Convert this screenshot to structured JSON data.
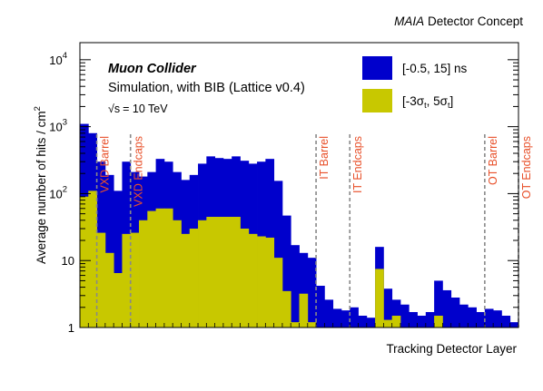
{
  "header": {
    "concept_italic": "MAIA",
    "concept_rest": " Detector Concept"
  },
  "chart_data": {
    "type": "bar",
    "subtype": "stacked-step-histogram",
    "title": "",
    "xlabel": "Tracking Detector Layer",
    "ylabel": "Average number of hits / cm",
    "ylabel_sup": "2",
    "yscale": "log",
    "ylim": [
      1,
      18000
    ],
    "y_ticks": [
      {
        "value": 1,
        "label": "1"
      },
      {
        "value": 10,
        "label": "10"
      },
      {
        "value": 100,
        "label": "10",
        "sup": "2"
      },
      {
        "value": 1000,
        "label": "10",
        "sup": "3"
      },
      {
        "value": 10000,
        "label": "10",
        "sup": "4"
      }
    ],
    "n_layers": 52,
    "series": [
      {
        "name": "[-0.5, 15] ns",
        "color": "#0000cc",
        "values": [
          1100,
          800,
          300,
          190,
          110,
          300,
          210,
          180,
          210,
          330,
          300,
          210,
          160,
          190,
          280,
          360,
          340,
          330,
          360,
          310,
          280,
          300,
          330,
          155,
          47,
          17,
          13,
          11,
          4.2,
          2.6,
          1.9,
          1.8,
          2.0,
          1.5,
          1.4,
          16,
          3.8,
          2.6,
          2.2,
          1.7,
          1.5,
          1.7,
          5.0,
          3.6,
          2.8,
          2.2,
          2.0,
          1.7,
          1.9,
          1.8,
          1.5,
          1.2
        ]
      },
      {
        "name": "[-3σ_t, 5σ_t]",
        "color": "#c8c800",
        "values": [
          90,
          110,
          26,
          13,
          6.5,
          25,
          26,
          40,
          55,
          60,
          60,
          40,
          25,
          30,
          40,
          45,
          45,
          45,
          45,
          30,
          25,
          23,
          22,
          11,
          3.5,
          1.2,
          3.2,
          1.2,
          1,
          1,
          1,
          1,
          1,
          1,
          1,
          7.5,
          1.3,
          1.5,
          1,
          1,
          1,
          1,
          1.5,
          1,
          1,
          1,
          1,
          1,
          1,
          1,
          1,
          1
        ]
      }
    ],
    "dashed_lines": [
      {
        "after_layer": 1
      },
      {
        "after_layer": 5
      },
      {
        "after_layer": 27
      },
      {
        "after_layer": 31
      },
      {
        "after_layer": 47
      },
      {
        "after_layer": 51
      }
    ],
    "annotations": [
      {
        "text": "VXD Barrel",
        "after_layer": 1
      },
      {
        "text": "VXD Endcaps",
        "after_layer": 5
      },
      {
        "text": "IT Barrel",
        "after_layer": 27
      },
      {
        "text": "IT Endcaps",
        "after_layer": 31
      },
      {
        "text": "OT Barrel",
        "after_layer": 47
      },
      {
        "text": "OT Endcaps",
        "after_layer": 51
      }
    ],
    "annotation_color": "#e8502a",
    "info": {
      "line1": "Muon Collider",
      "line2": "Simulation, with BIB (Lattice v0.4)",
      "line3": "= 10 TeV",
      "sqrt_symbol": "√s"
    },
    "legend": {
      "placement": "top-right",
      "entries": [
        "[-0.5, 15] ns",
        "[-3σ_t, 5σ_t]"
      ]
    }
  }
}
